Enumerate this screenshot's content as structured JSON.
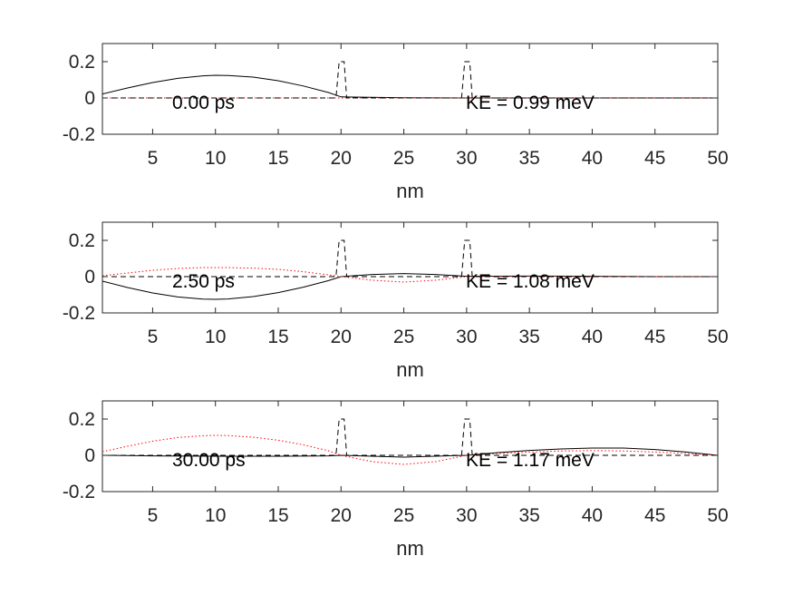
{
  "chart_data": [
    {
      "type": "line",
      "title": "",
      "xlabel": "nm",
      "ylabel": "",
      "xlim": [
        1,
        50
      ],
      "ylim": [
        -0.2,
        0.3
      ],
      "xticks": [
        5,
        10,
        15,
        20,
        25,
        30,
        35,
        40,
        45,
        50
      ],
      "xtick_labels": [
        "5",
        "10",
        "15",
        "20",
        "25",
        "30",
        "35",
        "40",
        "45",
        "50"
      ],
      "yticks": [
        -0.2,
        0,
        0.2
      ],
      "ytick_labels": [
        "-0.2",
        "0",
        "0.2"
      ],
      "grid": false,
      "annotations": [
        {
          "text": "0.00 ps",
          "x": 12.6,
          "y": 0.125
        },
        {
          "text": "KE =  0.99 meV",
          "x": 30,
          "y": 0.125
        }
      ],
      "series": [
        {
          "style": "solid-black",
          "x": [
            1,
            3,
            5,
            7,
            9,
            10,
            11,
            13,
            15,
            17,
            19,
            20,
            25,
            30,
            35,
            40,
            45,
            50
          ],
          "y": [
            0.022,
            0.055,
            0.085,
            0.108,
            0.122,
            0.125,
            0.124,
            0.115,
            0.095,
            0.066,
            0.03,
            0.006,
            0.001,
            0.0,
            0.0,
            0.0,
            0.0,
            0.0
          ]
        },
        {
          "style": "dotted-red",
          "x": [
            1,
            50
          ],
          "y": [
            0.0,
            0.0
          ]
        },
        {
          "style": "dashed-black",
          "x": [
            1,
            19.6,
            19.85,
            20.25,
            20.45,
            29.6,
            29.85,
            30.25,
            30.45,
            50
          ],
          "y": [
            0,
            0,
            0.2,
            0.2,
            0,
            0,
            0.2,
            0.2,
            0,
            0
          ]
        }
      ]
    },
    {
      "type": "line",
      "title": "",
      "xlabel": "nm",
      "ylabel": "",
      "xlim": [
        1,
        50
      ],
      "ylim": [
        -0.2,
        0.3
      ],
      "xticks": [
        5,
        10,
        15,
        20,
        25,
        30,
        35,
        40,
        45,
        50
      ],
      "xtick_labels": [
        "5",
        "10",
        "15",
        "20",
        "25",
        "30",
        "35",
        "40",
        "45",
        "50"
      ],
      "yticks": [
        -0.2,
        0,
        0.2
      ],
      "ytick_labels": [
        "-0.2",
        "0",
        "0.2"
      ],
      "grid": false,
      "annotations": [
        {
          "text": "2.50 ps",
          "x": 12.6,
          "y": 0.125
        },
        {
          "text": "KE =  1.08 meV",
          "x": 30,
          "y": 0.125
        }
      ],
      "series": [
        {
          "style": "solid-black",
          "x": [
            1,
            3,
            5,
            7,
            9,
            10,
            11,
            13,
            15,
            17,
            19,
            20,
            22.5,
            25,
            27.5,
            30,
            35,
            40,
            45,
            50
          ],
          "y": [
            -0.025,
            -0.06,
            -0.09,
            -0.112,
            -0.124,
            -0.125,
            -0.123,
            -0.11,
            -0.088,
            -0.058,
            -0.022,
            0.0,
            0.012,
            0.017,
            0.012,
            0.002,
            0.003,
            0.002,
            0.0,
            0.0
          ]
        },
        {
          "style": "dotted-red",
          "x": [
            1,
            3,
            5,
            7,
            9,
            11,
            13,
            15,
            17,
            19,
            20,
            22.5,
            25,
            27.5,
            30,
            35,
            40,
            45,
            50
          ],
          "y": [
            0.005,
            0.02,
            0.035,
            0.045,
            0.05,
            0.05,
            0.047,
            0.04,
            0.027,
            0.01,
            0.0,
            -0.02,
            -0.03,
            -0.02,
            0.0,
            0.002,
            0.001,
            0.0,
            0.0
          ]
        },
        {
          "style": "dashed-black",
          "x": [
            1,
            19.6,
            19.85,
            20.25,
            20.45,
            29.6,
            29.85,
            30.25,
            30.45,
            50
          ],
          "y": [
            0,
            0,
            0.2,
            0.2,
            0,
            0,
            0.2,
            0.2,
            0,
            0
          ]
        }
      ]
    },
    {
      "type": "line",
      "title": "",
      "xlabel": "nm",
      "ylabel": "",
      "xlim": [
        1,
        50
      ],
      "ylim": [
        -0.2,
        0.3
      ],
      "xticks": [
        5,
        10,
        15,
        20,
        25,
        30,
        35,
        40,
        45,
        50
      ],
      "xtick_labels": [
        "5",
        "10",
        "15",
        "20",
        "25",
        "30",
        "35",
        "40",
        "45",
        "50"
      ],
      "yticks": [
        -0.2,
        0,
        0.2
      ],
      "ytick_labels": [
        "-0.2",
        "0",
        "0.2"
      ],
      "grid": false,
      "annotations": [
        {
          "text": "30.00 ps",
          "x": 12.6,
          "y": 0.125
        },
        {
          "text": "KE =  1.17 meV",
          "x": 30,
          "y": 0.125
        }
      ],
      "series": [
        {
          "style": "solid-black",
          "x": [
            1,
            5,
            10,
            15,
            19,
            20,
            25,
            30,
            32.5,
            35,
            37.5,
            40,
            42.5,
            45,
            47.5,
            50
          ],
          "y": [
            0.0,
            -0.003,
            -0.005,
            -0.005,
            -0.003,
            0.0,
            -0.01,
            0.0,
            0.015,
            0.027,
            0.035,
            0.04,
            0.04,
            0.032,
            0.018,
            0.0
          ]
        },
        {
          "style": "dotted-red",
          "x": [
            1,
            3,
            5,
            7,
            9,
            10,
            11,
            13,
            15,
            17,
            19,
            20,
            22.5,
            25,
            27.5,
            30,
            32.5,
            35,
            37.5,
            40,
            42.5,
            45,
            47.5,
            50
          ],
          "y": [
            0.02,
            0.05,
            0.078,
            0.098,
            0.108,
            0.11,
            0.109,
            0.1,
            0.083,
            0.058,
            0.025,
            0.0,
            -0.035,
            -0.05,
            -0.035,
            0.0,
            0.01,
            0.018,
            0.024,
            0.026,
            0.024,
            0.018,
            0.01,
            0.0
          ]
        },
        {
          "style": "dashed-black",
          "x": [
            1,
            19.6,
            19.85,
            20.25,
            20.45,
            29.6,
            29.85,
            30.25,
            30.45,
            50
          ],
          "y": [
            0,
            0,
            0.2,
            0.2,
            0,
            0,
            0.2,
            0.2,
            0,
            0
          ]
        }
      ]
    }
  ]
}
